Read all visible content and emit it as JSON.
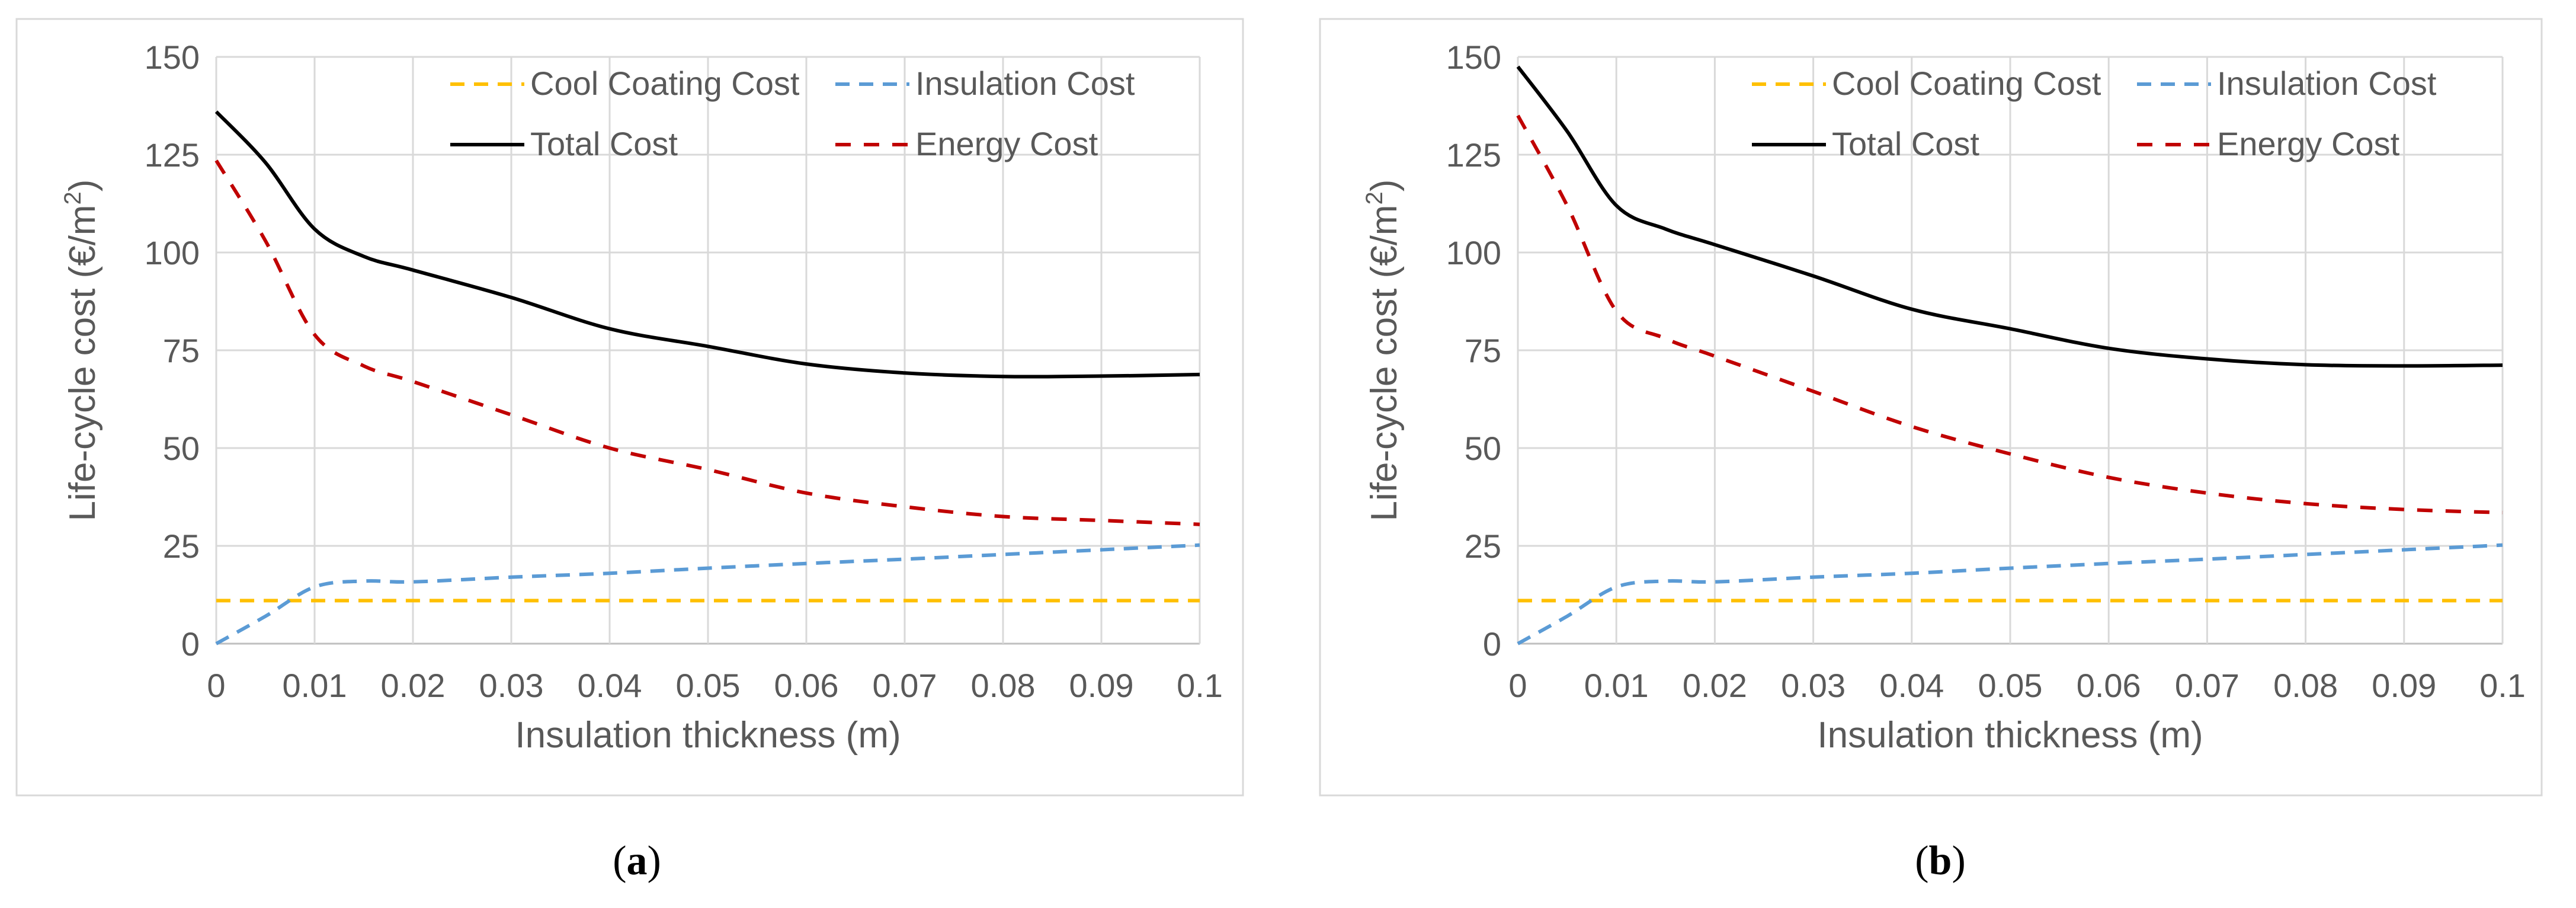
{
  "colors": {
    "cool_coating": "#ffc000",
    "insulation": "#5b9bd5",
    "total": "#000000",
    "energy": "#c00000",
    "grid": "#d9d9d9",
    "text": "#595959"
  },
  "chart_data": [
    {
      "type": "line",
      "caption": "(a)",
      "caption_letter": "a",
      "xlabel": "Insulation thickness (m)",
      "ylabel_prefix": "Life-cycle cost (€/m",
      "ylabel_sup": "2",
      "ylabel_suffix": ")",
      "xlim": [
        0,
        0.1
      ],
      "ylim": [
        0,
        150
      ],
      "xticks": [
        0,
        0.01,
        0.02,
        0.03,
        0.04,
        0.05,
        0.06,
        0.07,
        0.08,
        0.09,
        0.1
      ],
      "xtick_labels": [
        "0",
        "0.01",
        "0.02",
        "0.03",
        "0.04",
        "0.05",
        "0.06",
        "0.07",
        "0.08",
        "0.09",
        "0.1"
      ],
      "yticks": [
        0,
        25,
        50,
        75,
        100,
        125,
        150
      ],
      "ytick_labels": [
        "0",
        "25",
        "50",
        "75",
        "100",
        "125",
        "150"
      ],
      "grid": true,
      "legend": [
        {
          "name": "Cool Coating Cost",
          "key": "cool_coating",
          "dash": true
        },
        {
          "name": "Insulation Cost",
          "key": "insulation",
          "dash": true
        },
        {
          "name": "Total Cost",
          "key": "total",
          "dash": false
        },
        {
          "name": "Energy Cost",
          "key": "energy",
          "dash": true
        }
      ],
      "x": [
        0,
        0.005,
        0.01,
        0.015,
        0.02,
        0.03,
        0.04,
        0.05,
        0.06,
        0.07,
        0.08,
        0.09,
        0.1
      ],
      "series": [
        {
          "name": "Cool Coating Cost",
          "key": "cool_coating",
          "values": [
            11,
            11,
            11,
            11,
            11,
            11,
            11,
            11,
            11,
            11,
            11,
            11,
            11
          ]
        },
        {
          "name": "Insulation Cost",
          "key": "insulation",
          "values": [
            0,
            7,
            14.5,
            16,
            15.8,
            17,
            18,
            19.3,
            20.5,
            21.6,
            22.8,
            24,
            25.2
          ]
        },
        {
          "name": "Total Cost",
          "key": "total",
          "values": [
            136,
            123,
            106,
            99,
            95.5,
            88.5,
            80.5,
            76,
            71.5,
            69.2,
            68.3,
            68.4,
            68.8
          ]
        },
        {
          "name": "Energy Cost",
          "key": "energy",
          "values": [
            123.5,
            103,
            79,
            71,
            67,
            58.5,
            50,
            44.5,
            38.5,
            35,
            32.5,
            31.5,
            30.5
          ]
        }
      ]
    },
    {
      "type": "line",
      "caption": "(b)",
      "caption_letter": "b",
      "xlabel": "Insulation thickness (m)",
      "ylabel_prefix": "Life-cycle cost (€/m",
      "ylabel_sup": "2",
      "ylabel_suffix": ")",
      "xlim": [
        0,
        0.1
      ],
      "ylim": [
        0,
        150
      ],
      "xticks": [
        0,
        0.01,
        0.02,
        0.03,
        0.04,
        0.05,
        0.06,
        0.07,
        0.08,
        0.09,
        0.1
      ],
      "xtick_labels": [
        "0",
        "0.01",
        "0.02",
        "0.03",
        "0.04",
        "0.05",
        "0.06",
        "0.07",
        "0.08",
        "0.09",
        "0.1"
      ],
      "yticks": [
        0,
        25,
        50,
        75,
        100,
        125,
        150
      ],
      "ytick_labels": [
        "0",
        "25",
        "50",
        "75",
        "100",
        "125",
        "150"
      ],
      "grid": true,
      "legend": [
        {
          "name": "Cool Coating Cost",
          "key": "cool_coating",
          "dash": true
        },
        {
          "name": "Insulation Cost",
          "key": "insulation",
          "dash": true
        },
        {
          "name": "Total Cost",
          "key": "total",
          "dash": false
        },
        {
          "name": "Energy Cost",
          "key": "energy",
          "dash": true
        }
      ],
      "x": [
        0,
        0.005,
        0.01,
        0.015,
        0.02,
        0.03,
        0.04,
        0.05,
        0.06,
        0.07,
        0.08,
        0.09,
        0.1
      ],
      "series": [
        {
          "name": "Cool Coating Cost",
          "key": "cool_coating",
          "values": [
            11,
            11,
            11,
            11,
            11,
            11,
            11,
            11,
            11,
            11,
            11,
            11,
            11
          ]
        },
        {
          "name": "Insulation Cost",
          "key": "insulation",
          "values": [
            0,
            7,
            14.5,
            16,
            15.8,
            17,
            18,
            19.3,
            20.5,
            21.6,
            22.8,
            24,
            25.2
          ]
        },
        {
          "name": "Total Cost",
          "key": "total",
          "values": [
            147.5,
            131,
            112,
            106,
            102,
            94,
            85.5,
            80.5,
            75.5,
            72.8,
            71.3,
            71,
            71.2
          ]
        },
        {
          "name": "Energy Cost",
          "key": "energy",
          "values": [
            135,
            112,
            85,
            78,
            73.5,
            64.5,
            55.5,
            48.5,
            42.5,
            38.5,
            35.8,
            34.3,
            33.5
          ]
        }
      ]
    }
  ]
}
